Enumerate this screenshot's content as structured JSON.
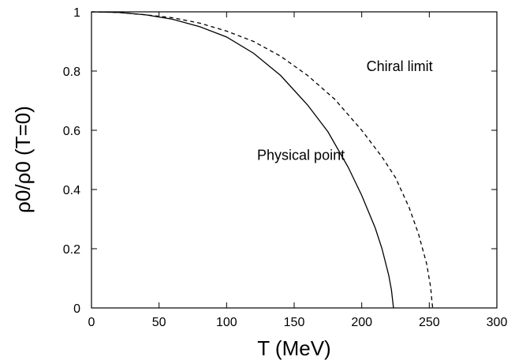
{
  "chart_data": {
    "type": "line",
    "title": "",
    "xlabel": "T (MeV)",
    "ylabel": "ρ0/ρ0 (T=0)",
    "xlim": [
      0,
      300
    ],
    "ylim": [
      0,
      1
    ],
    "x_ticks": [
      0,
      50,
      100,
      150,
      200,
      250,
      300
    ],
    "y_ticks": [
      0,
      0.2,
      0.4,
      0.6,
      0.8,
      1
    ],
    "x_tick_labels": [
      "0",
      "50",
      "100",
      "150",
      "200",
      "250",
      "300"
    ],
    "y_tick_labels": [
      "0",
      "0.2",
      "0.4",
      "0.6",
      "0.8",
      "1"
    ],
    "grid": false,
    "legend": "none",
    "series": [
      {
        "style": "solid",
        "color": "#000000",
        "points": [
          [
            0,
            1
          ],
          [
            20,
            0.998
          ],
          [
            40,
            0.99
          ],
          [
            60,
            0.975
          ],
          [
            80,
            0.95
          ],
          [
            100,
            0.915
          ],
          [
            120,
            0.86
          ],
          [
            140,
            0.785
          ],
          [
            160,
            0.685
          ],
          [
            175,
            0.595
          ],
          [
            190,
            0.475
          ],
          [
            200,
            0.38
          ],
          [
            210,
            0.27
          ],
          [
            215,
            0.2
          ],
          [
            220,
            0.11
          ],
          [
            222,
            0.06
          ],
          [
            223,
            0.02
          ],
          [
            223.5,
            0
          ]
        ]
      },
      {
        "style": "dashed",
        "color": "#000000",
        "points": [
          [
            0,
            1
          ],
          [
            20,
            0.998
          ],
          [
            40,
            0.99
          ],
          [
            60,
            0.98
          ],
          [
            80,
            0.962
          ],
          [
            100,
            0.935
          ],
          [
            120,
            0.9
          ],
          [
            140,
            0.85
          ],
          [
            160,
            0.785
          ],
          [
            180,
            0.705
          ],
          [
            200,
            0.6
          ],
          [
            215,
            0.51
          ],
          [
            225,
            0.44
          ],
          [
            235,
            0.34
          ],
          [
            242,
            0.25
          ],
          [
            248,
            0.15
          ],
          [
            251,
            0.07
          ],
          [
            252,
            0.02
          ],
          [
            252.5,
            0
          ]
        ]
      }
    ],
    "annotations": [
      {
        "text": "Chiral limit",
        "x": 228,
        "y": 0.8
      },
      {
        "text": "Physical point",
        "x": 155,
        "y": 0.5
      }
    ]
  }
}
